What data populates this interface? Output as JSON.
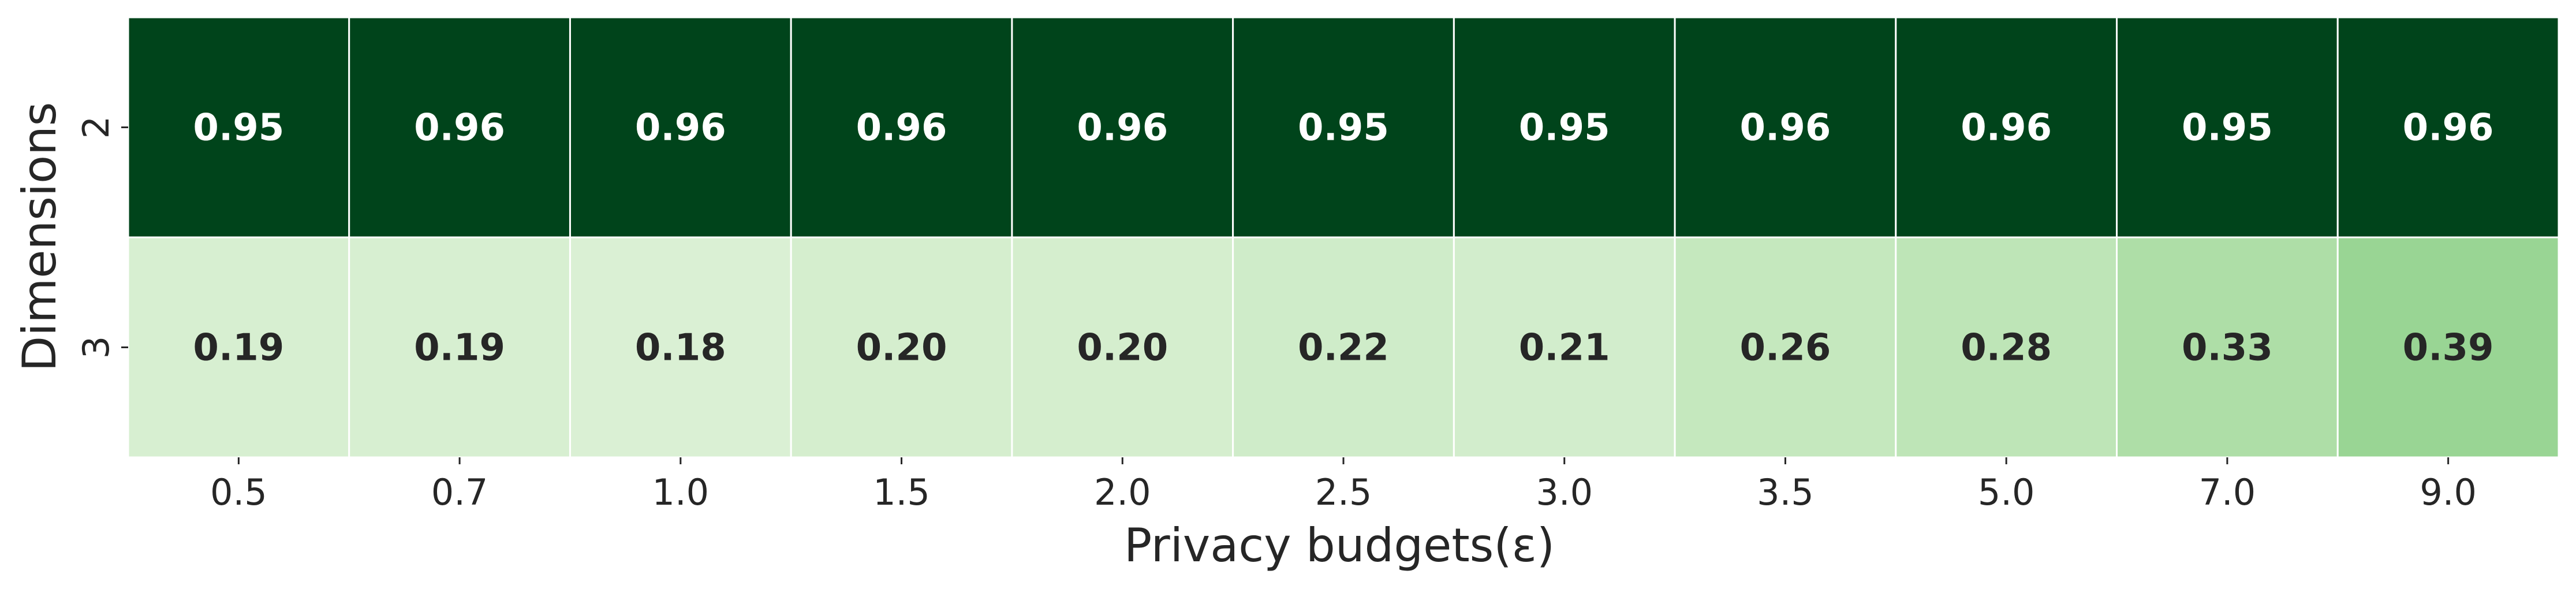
{
  "chart_data": {
    "type": "heatmap",
    "title": "",
    "xlabel": "Privacy budgets(ε)",
    "ylabel": "Dimensions",
    "x_categories": [
      "0.5",
      "0.7",
      "1.0",
      "1.5",
      "2.0",
      "2.5",
      "3.0",
      "3.5",
      "5.0",
      "7.0",
      "9.0"
    ],
    "y_categories": [
      "2",
      "3"
    ],
    "values": [
      [
        0.95,
        0.96,
        0.96,
        0.96,
        0.96,
        0.95,
        0.95,
        0.96,
        0.96,
        0.95,
        0.96
      ],
      [
        0.19,
        0.19,
        0.18,
        0.2,
        0.2,
        0.22,
        0.21,
        0.26,
        0.28,
        0.33,
        0.39
      ]
    ],
    "value_labels": [
      [
        "0.95",
        "0.96",
        "0.96",
        "0.96",
        "0.96",
        "0.95",
        "0.95",
        "0.96",
        "0.96",
        "0.95",
        "0.96"
      ],
      [
        "0.19",
        "0.19",
        "0.18",
        "0.20",
        "0.20",
        "0.22",
        "0.21",
        "0.26",
        "0.28",
        "0.33",
        "0.39"
      ]
    ],
    "colormap": "Greens",
    "colorbar": false,
    "grid": false,
    "colors": {
      "low": "#e5f5e0",
      "mid": "#a1d99b",
      "high": "#00441b",
      "cell_border": "#ffffff",
      "dark_text": "#262626",
      "light_text": "#ffffff"
    }
  }
}
